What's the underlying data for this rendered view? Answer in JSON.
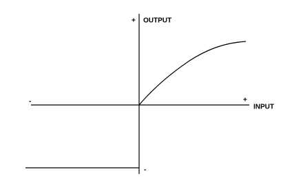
{
  "axes": {
    "output_label": "OUTPUT",
    "output_plus": "+",
    "output_minus": "-",
    "input_label": "INPUT",
    "input_plus": "+",
    "input_minus": "-"
  }
}
